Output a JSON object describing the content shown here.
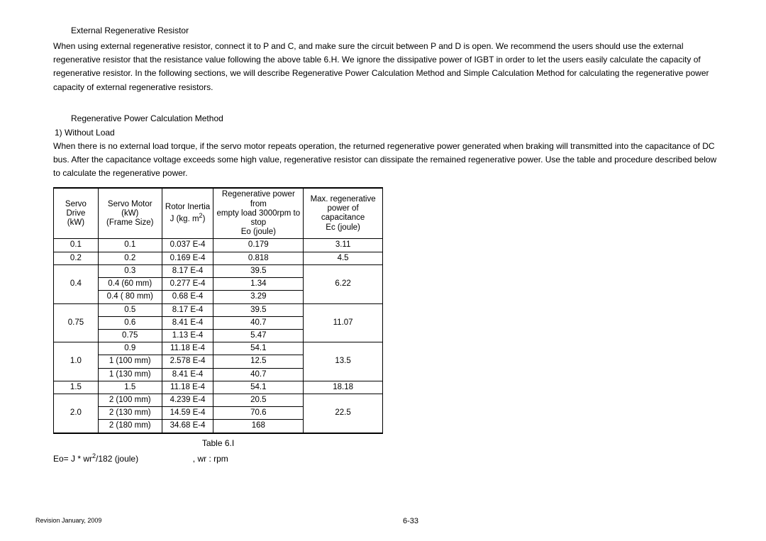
{
  "headings": {
    "external_regen": "External Regenerative Resistor",
    "regen_power_calc": "Regenerative Power Calculation Method"
  },
  "paragraphs": {
    "p1": "When using external regenerative resistor, connect it to P and C, and make sure the circuit between P and D is open. We recommend the users should use the external regenerative resistor that the resistance value following the above table 6.H. We ignore the dissipative power of IGBT in order to let the users easily calculate the capacity of regenerative resistor. In the following sections, we will describe Regenerative Power Calculation Method and Simple Calculation Method for calculating the regenerative power capacity of external regenerative resistors.",
    "list1": "1)  Without Load",
    "p2": "When there is no external load torque, if the servo motor repeats operation, the returned regenerative power generated when braking will transmitted into the capacitance of DC bus. After the capacitance voltage exceeds some high value, regenerative resistor can dissipate the remained regenerative power. Use the table and procedure described below to calculate the regenerative power."
  },
  "table": {
    "headers": {
      "c1a": "Servo Drive",
      "c1b": "(kW)",
      "c2a": "Servo Motor (kW)",
      "c2b": "(Frame Size)",
      "c3a": "Rotor Inertia",
      "c3b_pre": "J (kg. m",
      "c3b_sup": "2",
      "c3b_post": ")",
      "c4a": "Regenerative power from",
      "c4b": "empty load 3000rpm to stop",
      "c4c": "Eo (joule)",
      "c5a": "Max. regenerative",
      "c5b": "power of capacitance",
      "c5c": "Ec (joule)"
    },
    "rows": {
      "r1": {
        "sd": "0.1",
        "sm": "0.1",
        "ri": "0.037 E-4",
        "eo": "0.179",
        "ec": "3.11"
      },
      "r2": {
        "sd": "0.2",
        "sm": "0.2",
        "ri": "0.169 E-4",
        "eo": "0.818",
        "ec": "4.5"
      },
      "r3": {
        "sd": "0.4",
        "sm": "0.3",
        "ri": "8.17 E-4",
        "eo": "39.5",
        "ec": "6.22"
      },
      "r4": {
        "sm": "0.4 (60 mm)",
        "ri": "0.277 E-4",
        "eo": "1.34"
      },
      "r5": {
        "sm": "0.4 ( 80 mm)",
        "ri": "0.68 E-4",
        "eo": "3.29"
      },
      "r6": {
        "sd": "0.75",
        "sm": "0.5",
        "ri": "8.17 E-4",
        "eo": "39.5",
        "ec": "11.07"
      },
      "r7": {
        "sm": "0.6",
        "ri": "8.41 E-4",
        "eo": "40.7"
      },
      "r8": {
        "sm": "0.75",
        "ri": "1.13 E-4",
        "eo": "5.47"
      },
      "r9": {
        "sd": "1.0",
        "sm": "0.9",
        "ri": "11.18 E-4",
        "eo": "54.1",
        "ec": "13.5"
      },
      "r10": {
        "sm": "1 (100 mm)",
        "ri": "2.578 E-4",
        "eo": "12.5"
      },
      "r11": {
        "sm": "1 (130 mm)",
        "ri": "8.41 E-4",
        "eo": "40.7"
      },
      "r12": {
        "sd": "1.5",
        "sm": "1.5",
        "ri": "11.18 E-4",
        "eo": "54.1",
        "ec": "18.18"
      },
      "r13": {
        "sd": "2.0",
        "sm": "2 (100 mm)",
        "ri": "4.239 E-4",
        "eo": "20.5",
        "ec": "22.5"
      },
      "r14": {
        "sm": "2 (130 mm)",
        "ri": "14.59 E-4",
        "eo": "70.6"
      },
      "r15": {
        "sm": "2 (180 mm)",
        "ri": "34.68 E-4",
        "eo": "168"
      }
    },
    "caption": "Table 6.I"
  },
  "formula": {
    "pre": "Eo= J * wr",
    "sup": "2",
    "mid": "/182 (joule)",
    "spacer": "                       ",
    "post": ", wr : rpm"
  },
  "footer": {
    "revision": "Revision January, 2009",
    "page": "6-33"
  }
}
